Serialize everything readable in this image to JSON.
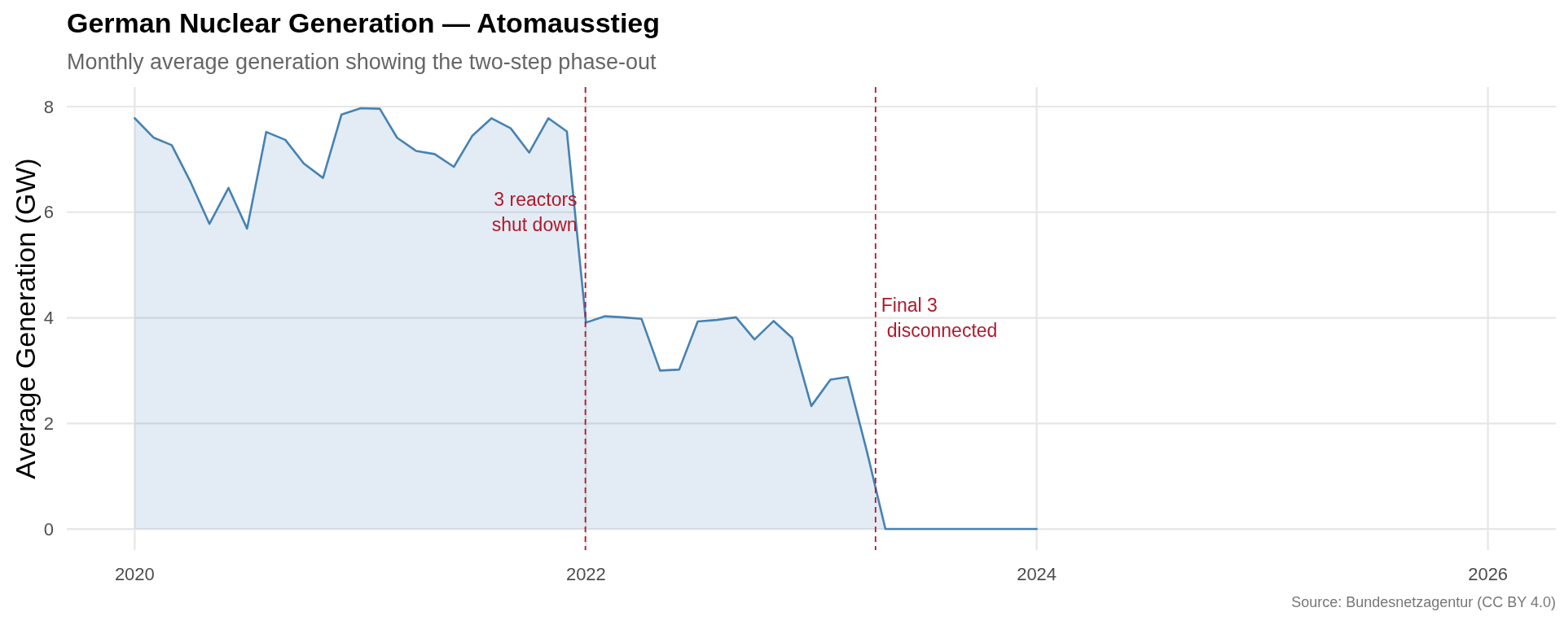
{
  "chart_data": {
    "type": "area",
    "title": "German Nuclear Generation — Atomausstieg",
    "subtitle": "Monthly average generation showing the two-step phase-out",
    "ylabel": "Average Generation (GW)",
    "annotations": [
      {
        "text": "3 reactors\nshut down",
        "x": "2021-12-31",
        "y": 6
      },
      {
        "text": "Final 3\ndisconnected",
        "x": "2023-04-15",
        "y": 4
      },
      "Source: Bundesnetzagentur (CC BY 4.0)"
    ],
    "x": [
      "2020-01",
      "2020-02",
      "2020-03",
      "2020-04",
      "2020-05",
      "2020-06",
      "2020-07",
      "2020-08",
      "2020-09",
      "2020-10",
      "2020-11",
      "2020-12",
      "2021-01",
      "2021-02",
      "2021-03",
      "2021-04",
      "2021-05",
      "2021-06",
      "2021-07",
      "2021-08",
      "2021-09",
      "2021-10",
      "2021-11",
      "2021-12",
      "2022-01",
      "2022-02",
      "2022-03",
      "2022-04",
      "2022-05",
      "2022-06",
      "2022-07",
      "2022-08",
      "2022-09",
      "2022-10",
      "2022-11",
      "2022-12",
      "2023-01",
      "2023-02",
      "2023-03",
      "2023-04",
      "2023-05",
      "2023-06",
      "2023-07",
      "2023-08",
      "2023-09",
      "2023-10",
      "2023-11",
      "2023-12",
      "2024-01"
    ],
    "series": [
      {
        "color": "#4682b4",
        "values": [
          7.78,
          7.41,
          7.27,
          6.56,
          5.78,
          6.46,
          5.69,
          7.52,
          7.37,
          6.92,
          6.65,
          7.85,
          7.97,
          7.96,
          7.41,
          7.16,
          7.1,
          6.86,
          7.45,
          7.78,
          7.59,
          7.13,
          7.78,
          7.53,
          3.91,
          4.03,
          4.01,
          3.98,
          3.0,
          3.02,
          3.93,
          3.96,
          4.01,
          3.59,
          3.94,
          3.62,
          2.33,
          2.83,
          2.88,
          1.47,
          0,
          0,
          0,
          0,
          0,
          0,
          0,
          0,
          0
        ]
      }
    ],
    "xlim": [
      "2019-09-13",
      "2026-04-21"
    ],
    "xticks": [
      "2020",
      "2022",
      "2024",
      "2026"
    ],
    "ylim": [
      -0.4,
      8.37
    ],
    "yticks": [
      0,
      2,
      4,
      6,
      8
    ],
    "grid": true,
    "ref_lines": [
      {
        "axis": "x",
        "value": "2021-12-31",
        "color": "#b2182b",
        "line_style": "dashed"
      },
      {
        "axis": "x",
        "value": "2023-04-15",
        "color": "#b2182b",
        "line_style": "dashed"
      }
    ]
  }
}
